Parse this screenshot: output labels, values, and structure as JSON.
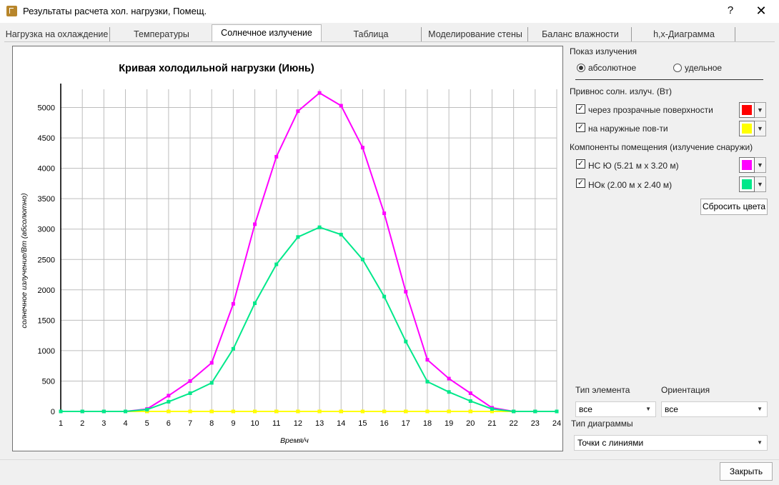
{
  "window": {
    "title": "Результаты расчета хол. нагрузки, Помещ.",
    "help": "?",
    "close": "✕"
  },
  "tabs": [
    {
      "label": "Нагрузка на охлаждение"
    },
    {
      "label": "Температуры"
    },
    {
      "label": "Солнечное излучение"
    },
    {
      "label": "Таблица"
    },
    {
      "label": "Моделирование стены"
    },
    {
      "label": "Баланс влажности"
    },
    {
      "label": "h,x-Диаграмма"
    }
  ],
  "chart_data": {
    "type": "line",
    "title": "Кривая холодильной нагрузки (Июнь)",
    "xlabel": "Время/ч",
    "ylabel": "солнечное излучение/Вт (абсолютно)",
    "x": [
      1,
      2,
      3,
      4,
      5,
      6,
      7,
      8,
      9,
      10,
      11,
      12,
      13,
      14,
      15,
      16,
      17,
      18,
      19,
      20,
      21,
      22,
      23,
      24
    ],
    "xlim": [
      1,
      24
    ],
    "ylim": [
      0,
      5300
    ],
    "yticks": [
      0,
      500,
      1000,
      1500,
      2000,
      2500,
      3000,
      3500,
      4000,
      4500,
      5000
    ],
    "grid": true,
    "series": [
      {
        "name": "через прозрачные поверхности",
        "color": "#ff0000",
        "values": [
          0,
          0,
          0,
          0,
          0,
          0,
          0,
          0,
          0,
          0,
          0,
          0,
          0,
          0,
          0,
          0,
          0,
          0,
          0,
          0,
          0,
          0,
          0,
          0
        ]
      },
      {
        "name": "на наружные пов-ти",
        "color": "#ffff00",
        "values": [
          0,
          0,
          0,
          0,
          0,
          0,
          0,
          0,
          0,
          0,
          0,
          0,
          0,
          0,
          0,
          0,
          0,
          0,
          0,
          0,
          0,
          0,
          0,
          0
        ]
      },
      {
        "name": "НС Ю (5.21 м x 3.20 м)",
        "color": "#ff00ff",
        "values": [
          0,
          0,
          0,
          0,
          40,
          260,
          500,
          800,
          1770,
          3080,
          4190,
          4940,
          5240,
          5030,
          4340,
          3260,
          1970,
          850,
          540,
          300,
          60,
          0,
          0,
          0
        ]
      },
      {
        "name": "НОк (2.00 м x 2.40 м)",
        "color": "#00e88a",
        "values": [
          0,
          0,
          0,
          0,
          30,
          160,
          300,
          470,
          1030,
          1780,
          2420,
          2870,
          3030,
          2910,
          2500,
          1890,
          1150,
          490,
          320,
          170,
          40,
          0,
          0,
          0
        ]
      }
    ]
  },
  "side": {
    "display_label": "Показ излучения",
    "radio_absolute": "абсолютное",
    "radio_specific": "удельное",
    "solar_gain_label": "Привнос солн. излуч. (Вт)",
    "check_transparent": "через прозрачные поверхности",
    "check_external": "на наружные пов-ти",
    "components_label": "Компоненты помещения (излучение снаружи)",
    "check_ns": "НС Ю (5.21 м x 3.20 м)",
    "check_nok": "НОк (2.00 м x 2.40 м)",
    "check_mark": "✓",
    "color_red": "#ff0000",
    "color_yellow": "#ffff00",
    "color_magenta": "#ff00ff",
    "color_green": "#00e88a",
    "reset_colors": "Сбросить цвета",
    "element_type_label": "Тип элемента",
    "orientation_label": "Ориентация",
    "element_type_value": "все",
    "orientation_value": "все",
    "diagram_type_label": "Тип диаграммы",
    "diagram_type_value": "Точки с линиями"
  },
  "footer": {
    "close_label": "Закрыть"
  }
}
